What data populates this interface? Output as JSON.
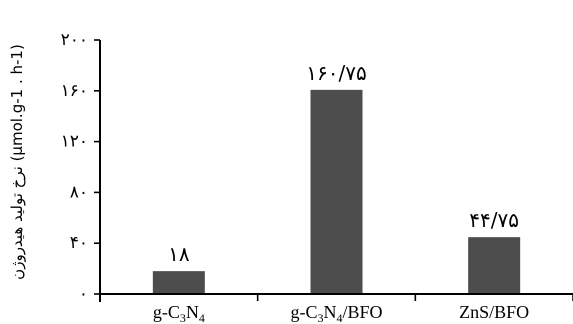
{
  "chart_data": {
    "type": "bar",
    "categories": [
      "g-C3N4",
      "g-C3N4/BFO",
      "ZnS/BFO"
    ],
    "category_labels": [
      {
        "parts": [
          [
            "g-C",
            false
          ],
          [
            "3",
            true
          ],
          [
            "N",
            false
          ],
          [
            "4",
            true
          ]
        ]
      },
      {
        "parts": [
          [
            "g-C",
            false
          ],
          [
            "3",
            true
          ],
          [
            "N",
            false
          ],
          [
            "4",
            true
          ],
          [
            "/BFO",
            false
          ]
        ]
      },
      {
        "parts": [
          [
            "ZnS/BFO",
            false
          ]
        ]
      }
    ],
    "values": [
      18,
      160.75,
      44.75
    ],
    "value_labels": [
      "۱۸",
      "۱۶۰/۷۵",
      "۴۴/۷۵"
    ],
    "ylim": [
      0,
      200
    ],
    "yticks": [
      0,
      40,
      80,
      120,
      160,
      200
    ],
    "ytick_labels": [
      "۰",
      "۴۰",
      "۸۰",
      "۱۲۰",
      "۱۶۰",
      "۲۰۰"
    ],
    "ylabel": "نرخ تولید هیدروژن (μmol.g-1 . h-1)",
    "bar_color": "#4d4d4d",
    "grid": false
  }
}
